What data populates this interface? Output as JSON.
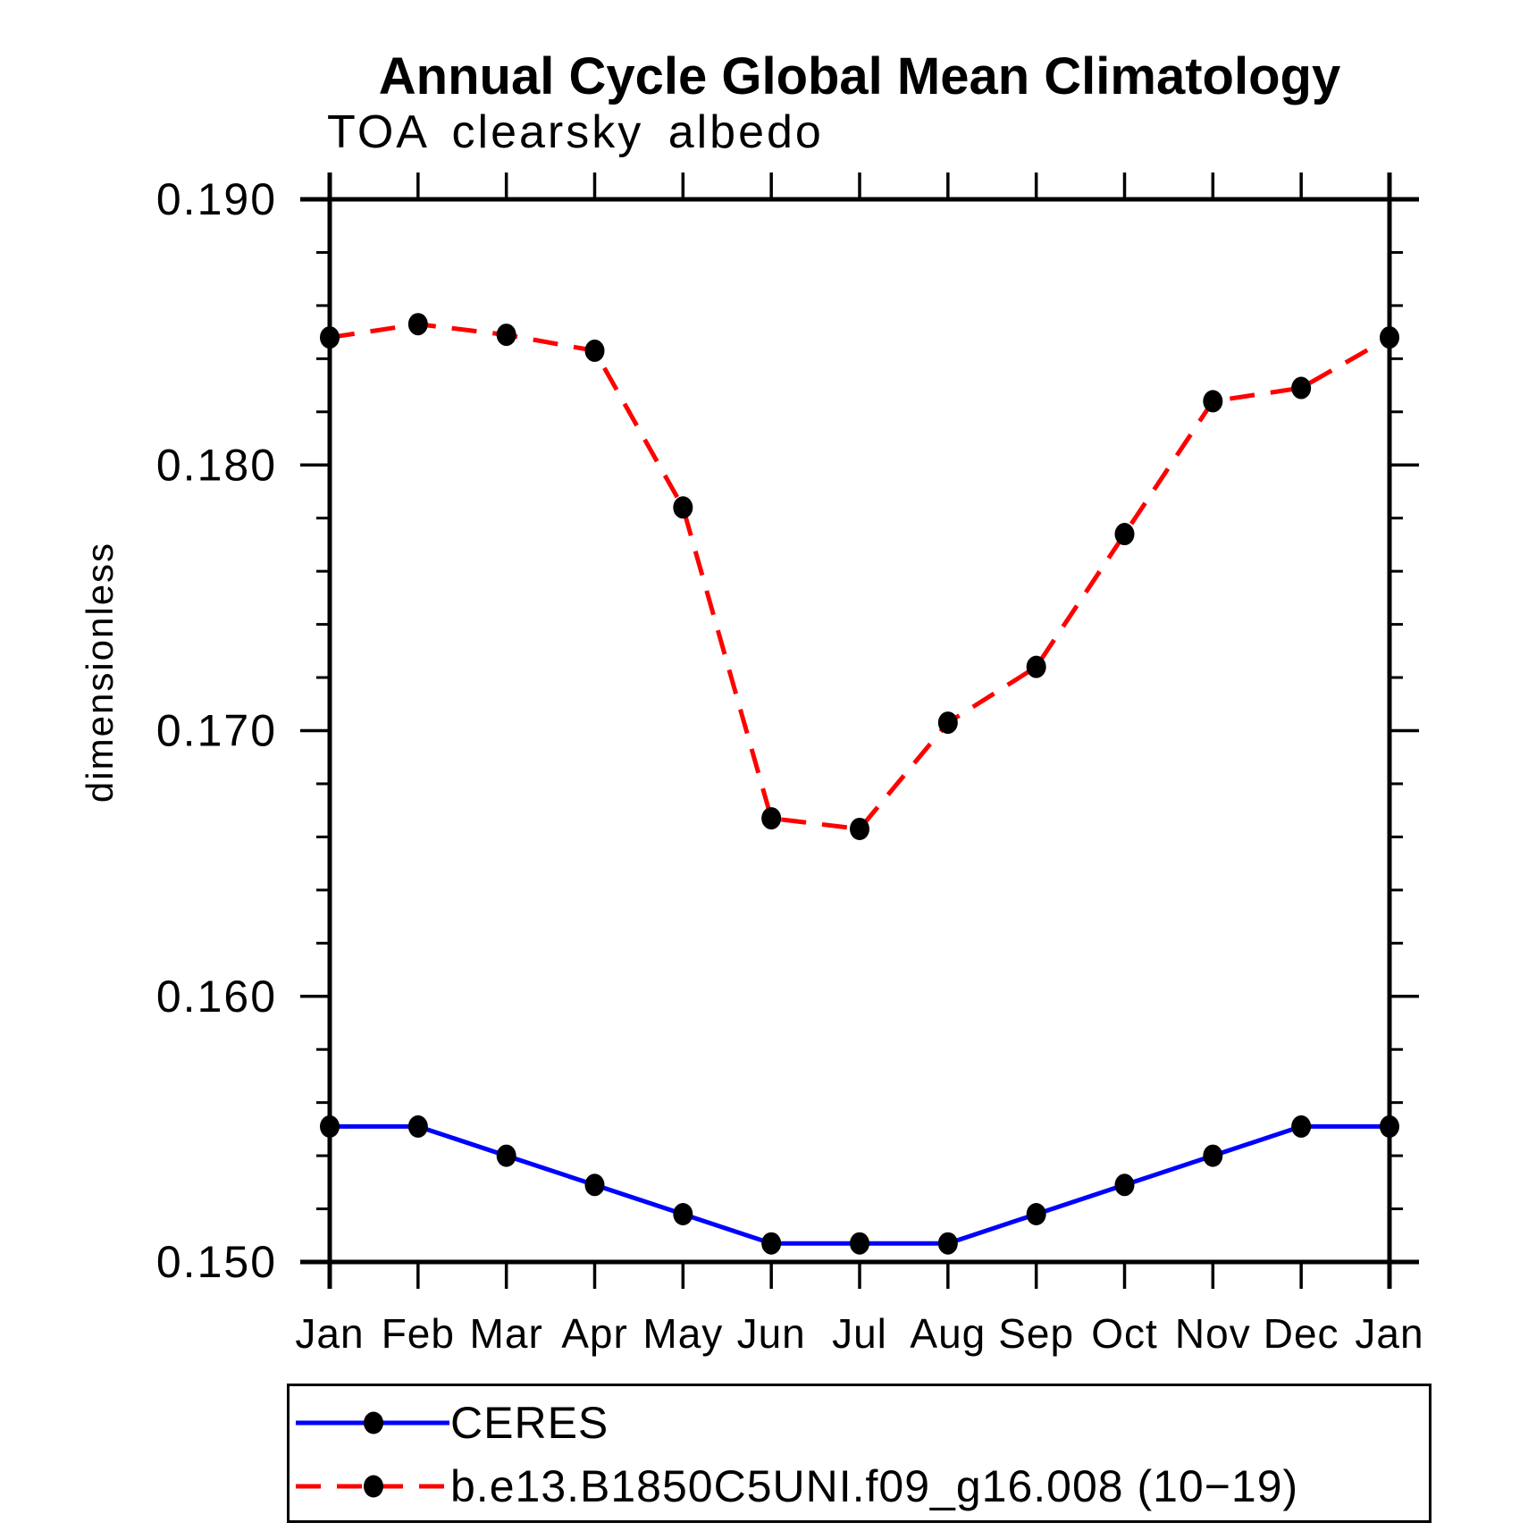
{
  "chart_data": {
    "type": "line",
    "title": "Annual Cycle Global Mean Climatology",
    "subtitle": "TOA clearsky albedo",
    "ylabel": "dimensionless",
    "xlabel": "",
    "x_tick_labels": [
      "Jan",
      "Feb",
      "Mar",
      "Apr",
      "May",
      "Jun",
      "Jul",
      "Aug",
      "Sep",
      "Oct",
      "Nov",
      "Dec",
      "Jan"
    ],
    "ylim": [
      0.15,
      0.19
    ],
    "y_major_ticks": [
      0.15,
      0.16,
      0.17,
      0.18,
      0.19
    ],
    "y_major_tick_labels": [
      "0.150",
      "0.160",
      "0.170",
      "0.180",
      "0.190"
    ],
    "y_minor_step": 0.002,
    "grid": "off",
    "legend_position": "bottom-left",
    "marker": "filled-circle",
    "marker_color": "#000000",
    "axis_color": "#000000",
    "series": [
      {
        "name": "CERES",
        "color": "#0000ff",
        "line_style": "solid",
        "values": [
          0.1551,
          0.1551,
          0.154,
          0.1529,
          0.1518,
          0.1507,
          0.1507,
          0.1507,
          0.1518,
          0.1529,
          0.154,
          0.1551,
          0.1551
        ]
      },
      {
        "name": "b.e13.B1850C5UNI.f09_g16.008 (10−19)",
        "color": "#ff0000",
        "line_style": "dashed",
        "values": [
          0.1848,
          0.1853,
          0.1849,
          0.1843,
          0.1784,
          0.1667,
          0.1663,
          0.1703,
          0.1724,
          0.1774,
          0.1824,
          0.1829,
          0.1848
        ]
      }
    ]
  }
}
